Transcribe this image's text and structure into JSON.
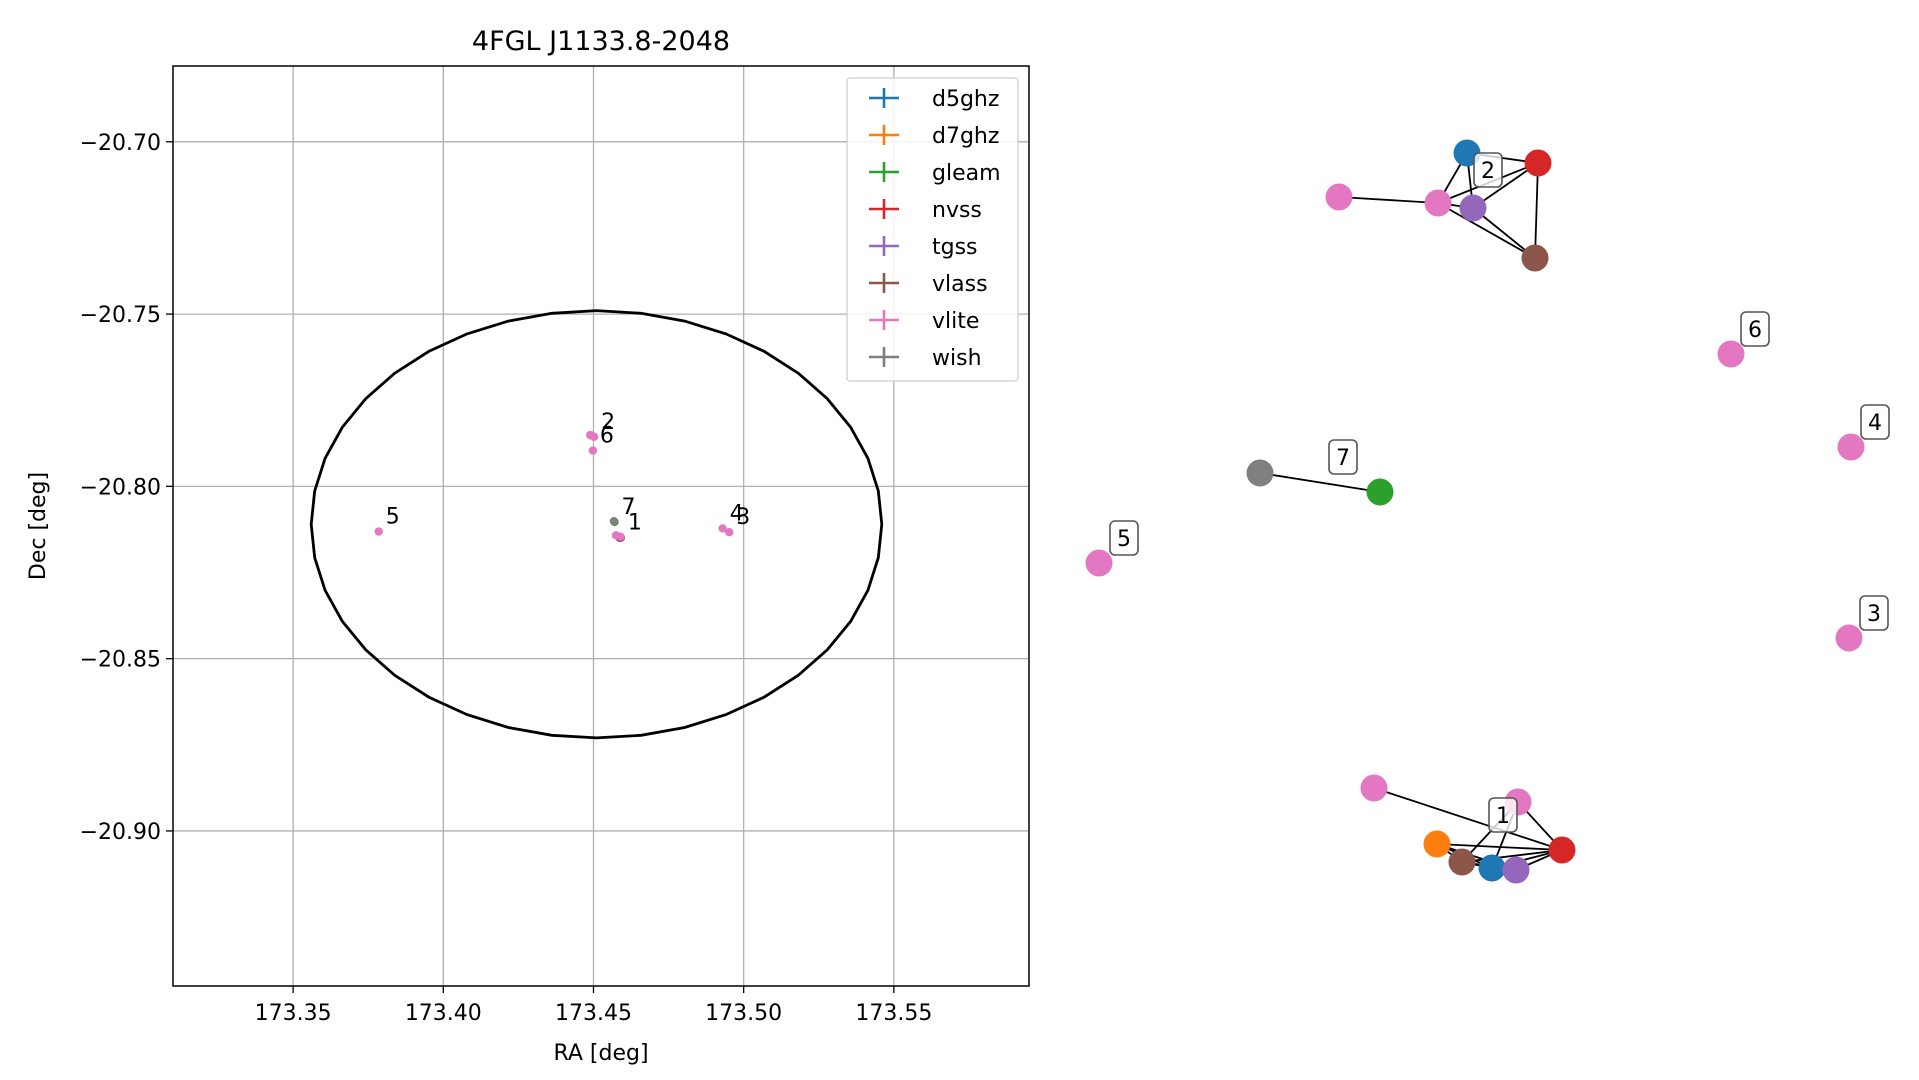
{
  "chart_data": [
    {
      "type": "scatter",
      "title": "4FGL J1133.8-2048",
      "xlabel": "RA [deg]",
      "ylabel": "Dec [deg]",
      "xlim": [
        173.31,
        173.595
      ],
      "ylim": [
        -20.945,
        -20.678
      ],
      "x_ticks": [
        173.35,
        173.4,
        173.45,
        173.5,
        173.55
      ],
      "x_tick_labels": [
        "173.35",
        "173.40",
        "173.45",
        "173.50",
        "173.55"
      ],
      "y_ticks": [
        -20.7,
        -20.75,
        -20.8,
        -20.85,
        -20.9
      ],
      "y_tick_labels": [
        "−20.70",
        "−20.75",
        "−20.80",
        "−20.85",
        "−20.90"
      ],
      "grid": true,
      "legend_position": "upper right",
      "series": [
        {
          "name": "d5ghz",
          "color": "#1f77b4",
          "points": [
            {
              "x": 173.4589,
              "y": -20.8149
            }
          ]
        },
        {
          "name": "d7ghz",
          "color": "#ff7f0e",
          "points": [
            {
              "x": 173.4586,
              "y": -20.8148
            }
          ]
        },
        {
          "name": "gleam",
          "color": "#2ca02c",
          "points": [
            {
              "x": 173.457,
              "y": -20.8103
            }
          ]
        },
        {
          "name": "nvss",
          "color": "#d62728",
          "points": [
            {
              "x": 173.4591,
              "y": -20.8149
            }
          ]
        },
        {
          "name": "tgss",
          "color": "#9467bd",
          "points": [
            {
              "x": 173.4589,
              "y": -20.815
            }
          ]
        },
        {
          "name": "vlass",
          "color": "#8c564b",
          "points": [
            {
              "x": 173.4588,
              "y": -20.8149
            }
          ]
        },
        {
          "name": "vlite",
          "color": "#e377c2",
          "points": [
            {
              "x": 173.4575,
              "y": -20.8142
            },
            {
              "x": 173.459,
              "y": -20.8146
            },
            {
              "x": 173.4489,
              "y": -20.7851
            },
            {
              "x": 173.4492,
              "y": -20.7852
            },
            {
              "x": 173.4502,
              "y": -20.7856
            },
            {
              "x": 173.4498,
              "y": -20.7896
            },
            {
              "x": 173.493,
              "y": -20.8122
            },
            {
              "x": 173.4952,
              "y": -20.8133
            },
            {
              "x": 173.3785,
              "y": -20.8131
            }
          ]
        },
        {
          "name": "wish",
          "color": "#7f7f7f",
          "points": [
            {
              "x": 173.4568,
              "y": -20.8101
            }
          ]
        }
      ],
      "ellipse": {
        "center_x": 173.451,
        "center_y": -20.811,
        "semi_axis_ra": 0.095,
        "semi_axis_dec": 0.062,
        "color": "#000000"
      },
      "point_labels": [
        {
          "text": "1",
          "x": 173.4591,
          "y": -20.8149
        },
        {
          "text": "2",
          "x": 173.4502,
          "y": -20.7856
        },
        {
          "text": "3",
          "x": 173.4952,
          "y": -20.8133
        },
        {
          "text": "4",
          "x": 173.493,
          "y": -20.8122
        },
        {
          "text": "5",
          "x": 173.3785,
          "y": -20.8131
        },
        {
          "text": "6",
          "x": 173.4498,
          "y": -20.7896
        },
        {
          "text": "7",
          "x": 173.457,
          "y": -20.8103
        }
      ]
    },
    {
      "type": "network",
      "groups": [
        {
          "label": "1",
          "nodes": [
            "vlite",
            "vlite",
            "d7ghz",
            "vlass",
            "d5ghz",
            "tgss",
            "nvss"
          ]
        },
        {
          "label": "2",
          "nodes": [
            "vlite",
            "vlite",
            "d5ghz",
            "tgss",
            "nvss",
            "vlass"
          ]
        },
        {
          "label": "3",
          "nodes": [
            "vlite"
          ]
        },
        {
          "label": "4",
          "nodes": [
            "vlite"
          ]
        },
        {
          "label": "5",
          "nodes": [
            "vlite"
          ]
        },
        {
          "label": "6",
          "nodes": [
            "vlite"
          ]
        },
        {
          "label": "7",
          "nodes": [
            "wish",
            "gleam"
          ]
        }
      ]
    }
  ]
}
